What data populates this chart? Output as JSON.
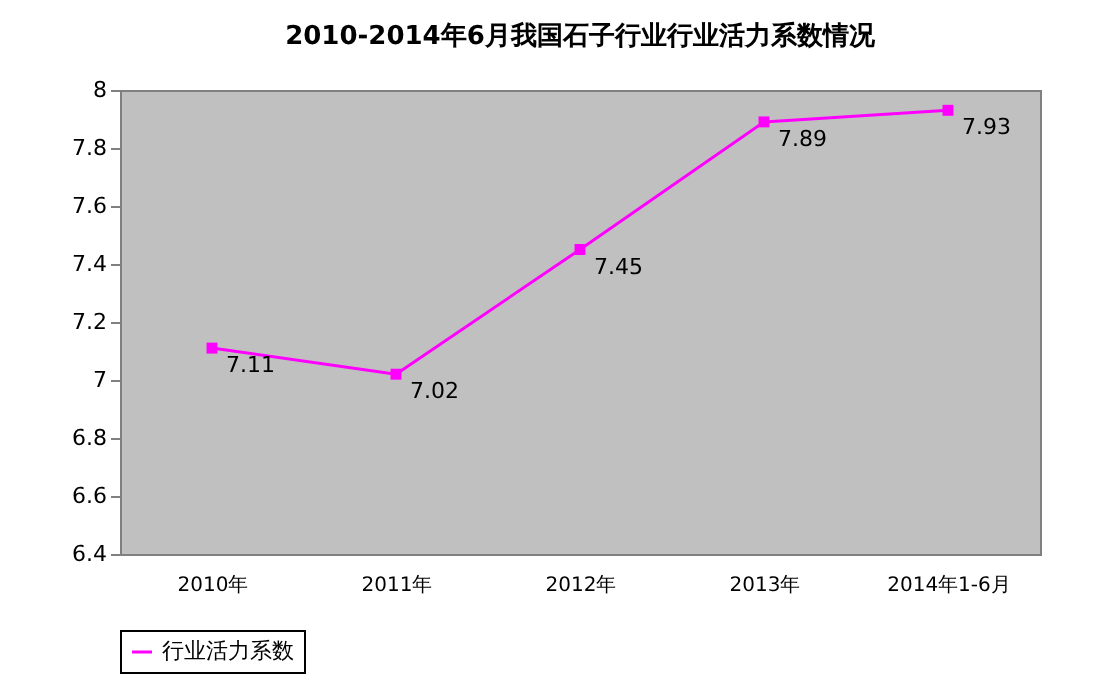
{
  "chart_data": {
    "type": "line",
    "title": "2010-2014年6月我国石子行业行业活力系数情况",
    "categories": [
      "2010年",
      "2011年",
      "2012年",
      "2013年",
      "2014年1-6月"
    ],
    "series": [
      {
        "name": "行业活力系数",
        "color": "#ff00ff",
        "values": [
          7.11,
          7.02,
          7.45,
          7.89,
          7.93
        ]
      }
    ],
    "ylim": [
      6.4,
      8
    ],
    "yticks": [
      6.4,
      6.6,
      6.8,
      7,
      7.2,
      7.4,
      7.6,
      7.8,
      8
    ],
    "grid": false,
    "legend": "bottom",
    "marker": "square",
    "data_labels": true
  }
}
